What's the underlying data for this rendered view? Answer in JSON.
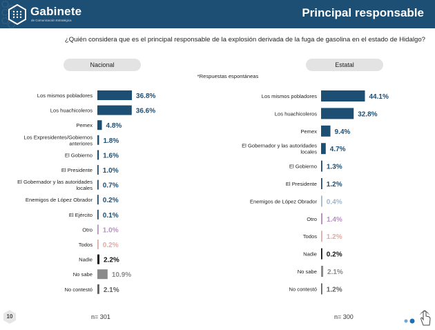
{
  "header": {
    "logo_name": "Gabinete",
    "logo_tagline": "de Comunicación Estratégica",
    "page_title": "Principal responsable"
  },
  "question": "¿Quién considera que es el principal responsable de la explosión derivada de la fuga de gasolina en el estado de Hidalgo?",
  "note": "*Respuestas espontáneas",
  "footer": {
    "page_number": "10",
    "n_nacional": "n= 301",
    "n_estatal": "n= 300"
  },
  "colors": {
    "navy": "#1d4e74",
    "black": "#111111",
    "gray": "#8a8a8a",
    "darkgray": "#606060",
    "lilac": "#b98fc4",
    "pink": "#e2aaa6",
    "lightblue": "#9fb7cc"
  },
  "chart_data": [
    {
      "type": "bar",
      "orientation": "horizontal",
      "title": "Nacional",
      "categories": [
        "Los mismos pobladores",
        "Los huachicoleros",
        "Pemex",
        "Los Expresidentes/Gobiernos anteriores",
        "El Gobierno",
        "El Presidente",
        "El Gobernador y las autoridades locales",
        "Enemigos de López Obrador",
        "El Ejército",
        "Otro",
        "Todos",
        "Nadie",
        "No sabe",
        "No contestó"
      ],
      "values": [
        36.8,
        36.6,
        4.8,
        1.8,
        1.6,
        1.0,
        0.7,
        0.2,
        0.1,
        1.0,
        0.2,
        2.2,
        10.9,
        2.1
      ],
      "value_labels": [
        "36.8%",
        "36.6%",
        "4.8%",
        "1.8%",
        "1.6%",
        "1.0%",
        "0.7%",
        "0.2%",
        "0.1%",
        "1.0%",
        "0.2%",
        "2.2%",
        "10.9%",
        "2.1%"
      ],
      "bar_colors": [
        "navy",
        "navy",
        "navy",
        "navy",
        "navy",
        "navy",
        "navy",
        "navy",
        "navy",
        "lilac",
        "pink",
        "black",
        "gray",
        "darkgray"
      ],
      "xlim": [
        0,
        50
      ],
      "grid": false
    },
    {
      "type": "bar",
      "orientation": "horizontal",
      "title": "Estatal",
      "categories": [
        "Los mismos pobladores",
        "Los huachicoleros",
        "Pemex",
        "El Gobernador y las autoridades locales",
        "El Gobierno",
        "El Presidente",
        "Enemigos de López Obrador",
        "Otro",
        "Todos",
        "Nadie",
        "No sabe",
        "No contestó"
      ],
      "values": [
        44.1,
        32.8,
        9.4,
        4.7,
        1.3,
        1.2,
        0.4,
        1.4,
        1.2,
        0.2,
        2.1,
        1.2
      ],
      "value_labels": [
        "44.1%",
        "32.8%",
        "9.4%",
        "4.7%",
        "1.3%",
        "1.2%",
        "0.4%",
        "1.4%",
        "1.2%",
        "0.2%",
        "2.1%",
        "1.2%"
      ],
      "bar_colors": [
        "navy",
        "navy",
        "navy",
        "navy",
        "navy",
        "navy",
        "lightblue",
        "lilac",
        "pink",
        "black",
        "gray",
        "darkgray"
      ],
      "xlim": [
        0,
        50
      ],
      "grid": false
    }
  ]
}
